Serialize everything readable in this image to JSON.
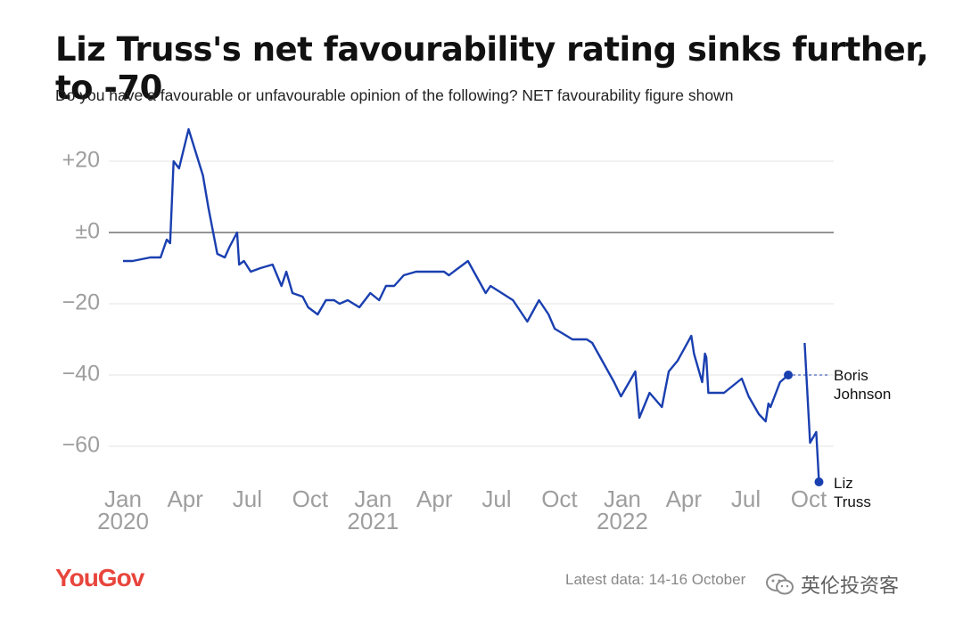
{
  "header": {
    "title": "Liz Truss's net favourability rating sinks further, to -70",
    "subtitle": "Do you have a favourable or unfavourable opinion of the following? NET favourability figure shown"
  },
  "chart_data": {
    "type": "line",
    "title": "Liz Truss's net favourability rating sinks further, to -70",
    "subtitle": "Do you have a favourable or unfavourable opinion of the following? NET favourability figure shown",
    "xlabel": "",
    "ylabel": "",
    "ylim": [
      -70,
      30
    ],
    "y_ticks": [
      {
        "value": 20,
        "label": "+20"
      },
      {
        "value": 0,
        "label": "±0"
      },
      {
        "value": -20,
        "label": "−20"
      },
      {
        "value": -40,
        "label": "−40"
      },
      {
        "value": -60,
        "label": "−60"
      }
    ],
    "x_ticks": [
      {
        "date": "2020-01",
        "label": "Jan",
        "year": "2020"
      },
      {
        "date": "2020-04",
        "label": "Apr",
        "year": ""
      },
      {
        "date": "2020-07",
        "label": "Jul",
        "year": ""
      },
      {
        "date": "2020-10",
        "label": "Oct",
        "year": ""
      },
      {
        "date": "2021-01",
        "label": "Jan",
        "year": "2021"
      },
      {
        "date": "2021-04",
        "label": "Apr",
        "year": ""
      },
      {
        "date": "2021-07",
        "label": "Jul",
        "year": ""
      },
      {
        "date": "2021-10",
        "label": "Oct",
        "year": ""
      },
      {
        "date": "2022-01",
        "label": "Jan",
        "year": "2022"
      },
      {
        "date": "2022-04",
        "label": "Apr",
        "year": ""
      },
      {
        "date": "2022-07",
        "label": "Jul",
        "year": ""
      },
      {
        "date": "2022-10",
        "label": "Oct",
        "year": ""
      }
    ],
    "grid": true,
    "line_color": "#1a3fb0",
    "series": [
      {
        "name": "Boris Johnson",
        "label": "Boris\nJohnson",
        "points": [
          [
            "2020-01-01",
            -8
          ],
          [
            "2020-01-15",
            -8
          ],
          [
            "2020-02-10",
            -7
          ],
          [
            "2020-02-25",
            -7
          ],
          [
            "2020-03-05",
            -2
          ],
          [
            "2020-03-10",
            -3
          ],
          [
            "2020-03-15",
            20
          ],
          [
            "2020-03-23",
            18
          ],
          [
            "2020-04-06",
            29
          ],
          [
            "2020-04-27",
            16
          ],
          [
            "2020-05-05",
            7
          ],
          [
            "2020-05-18",
            -6
          ],
          [
            "2020-05-29",
            -7
          ],
          [
            "2020-06-05",
            -4
          ],
          [
            "2020-06-16",
            0
          ],
          [
            "2020-06-19",
            -9
          ],
          [
            "2020-06-26",
            -8
          ],
          [
            "2020-07-06",
            -11
          ],
          [
            "2020-07-20",
            -10
          ],
          [
            "2020-08-07",
            -9
          ],
          [
            "2020-08-20",
            -15
          ],
          [
            "2020-08-27",
            -11
          ],
          [
            "2020-09-05",
            -17
          ],
          [
            "2020-09-20",
            -18
          ],
          [
            "2020-09-28",
            -21
          ],
          [
            "2020-10-12",
            -23
          ],
          [
            "2020-10-24",
            -19
          ],
          [
            "2020-11-05",
            -19
          ],
          [
            "2020-11-13",
            -20
          ],
          [
            "2020-11-25",
            -19
          ],
          [
            "2020-12-12",
            -21
          ],
          [
            "2020-12-28",
            -17
          ],
          [
            "2021-01-10",
            -19
          ],
          [
            "2021-01-20",
            -15
          ],
          [
            "2021-02-01",
            -15
          ],
          [
            "2021-02-15",
            -12
          ],
          [
            "2021-03-05",
            -11
          ],
          [
            "2021-04-15",
            -11
          ],
          [
            "2021-04-22",
            -12
          ],
          [
            "2021-05-20",
            -8
          ],
          [
            "2021-06-15",
            -17
          ],
          [
            "2021-06-22",
            -15
          ],
          [
            "2021-07-25",
            -19
          ],
          [
            "2021-08-15",
            -25
          ],
          [
            "2021-09-01",
            -19
          ],
          [
            "2021-09-15",
            -23
          ],
          [
            "2021-09-24",
            -27
          ],
          [
            "2021-10-20",
            -30
          ],
          [
            "2021-11-10",
            -30
          ],
          [
            "2021-11-18",
            -31
          ],
          [
            "2021-12-20",
            -42
          ],
          [
            "2021-12-30",
            -46
          ],
          [
            "2022-01-20",
            -39
          ],
          [
            "2022-01-26",
            -52
          ],
          [
            "2022-02-10",
            -45
          ],
          [
            "2022-02-28",
            -49
          ],
          [
            "2022-03-10",
            -39
          ],
          [
            "2022-03-23",
            -36
          ],
          [
            "2022-04-12",
            -29
          ],
          [
            "2022-04-16",
            -34
          ],
          [
            "2022-04-28",
            -42
          ],
          [
            "2022-05-02",
            -34
          ],
          [
            "2022-05-04",
            -35
          ],
          [
            "2022-05-07",
            -45
          ],
          [
            "2022-05-30",
            -45
          ],
          [
            "2022-06-25",
            -41
          ],
          [
            "2022-07-05",
            -46
          ],
          [
            "2022-07-20",
            -51
          ],
          [
            "2022-07-30",
            -53
          ],
          [
            "2022-08-03",
            -48
          ],
          [
            "2022-08-06",
            -49
          ],
          [
            "2022-08-20",
            -42
          ],
          [
            "2022-09-01",
            -40
          ]
        ]
      },
      {
        "name": "Liz Truss",
        "label": "Liz\nTruss",
        "points": [
          [
            "2022-09-25",
            -31
          ],
          [
            "2022-10-03",
            -59
          ],
          [
            "2022-10-12",
            -56
          ],
          [
            "2022-10-16",
            -70
          ]
        ]
      }
    ]
  },
  "footer": {
    "logo": "YouGov",
    "latest": "Latest data: 14-16 October",
    "watermark": "英伦投资客"
  }
}
